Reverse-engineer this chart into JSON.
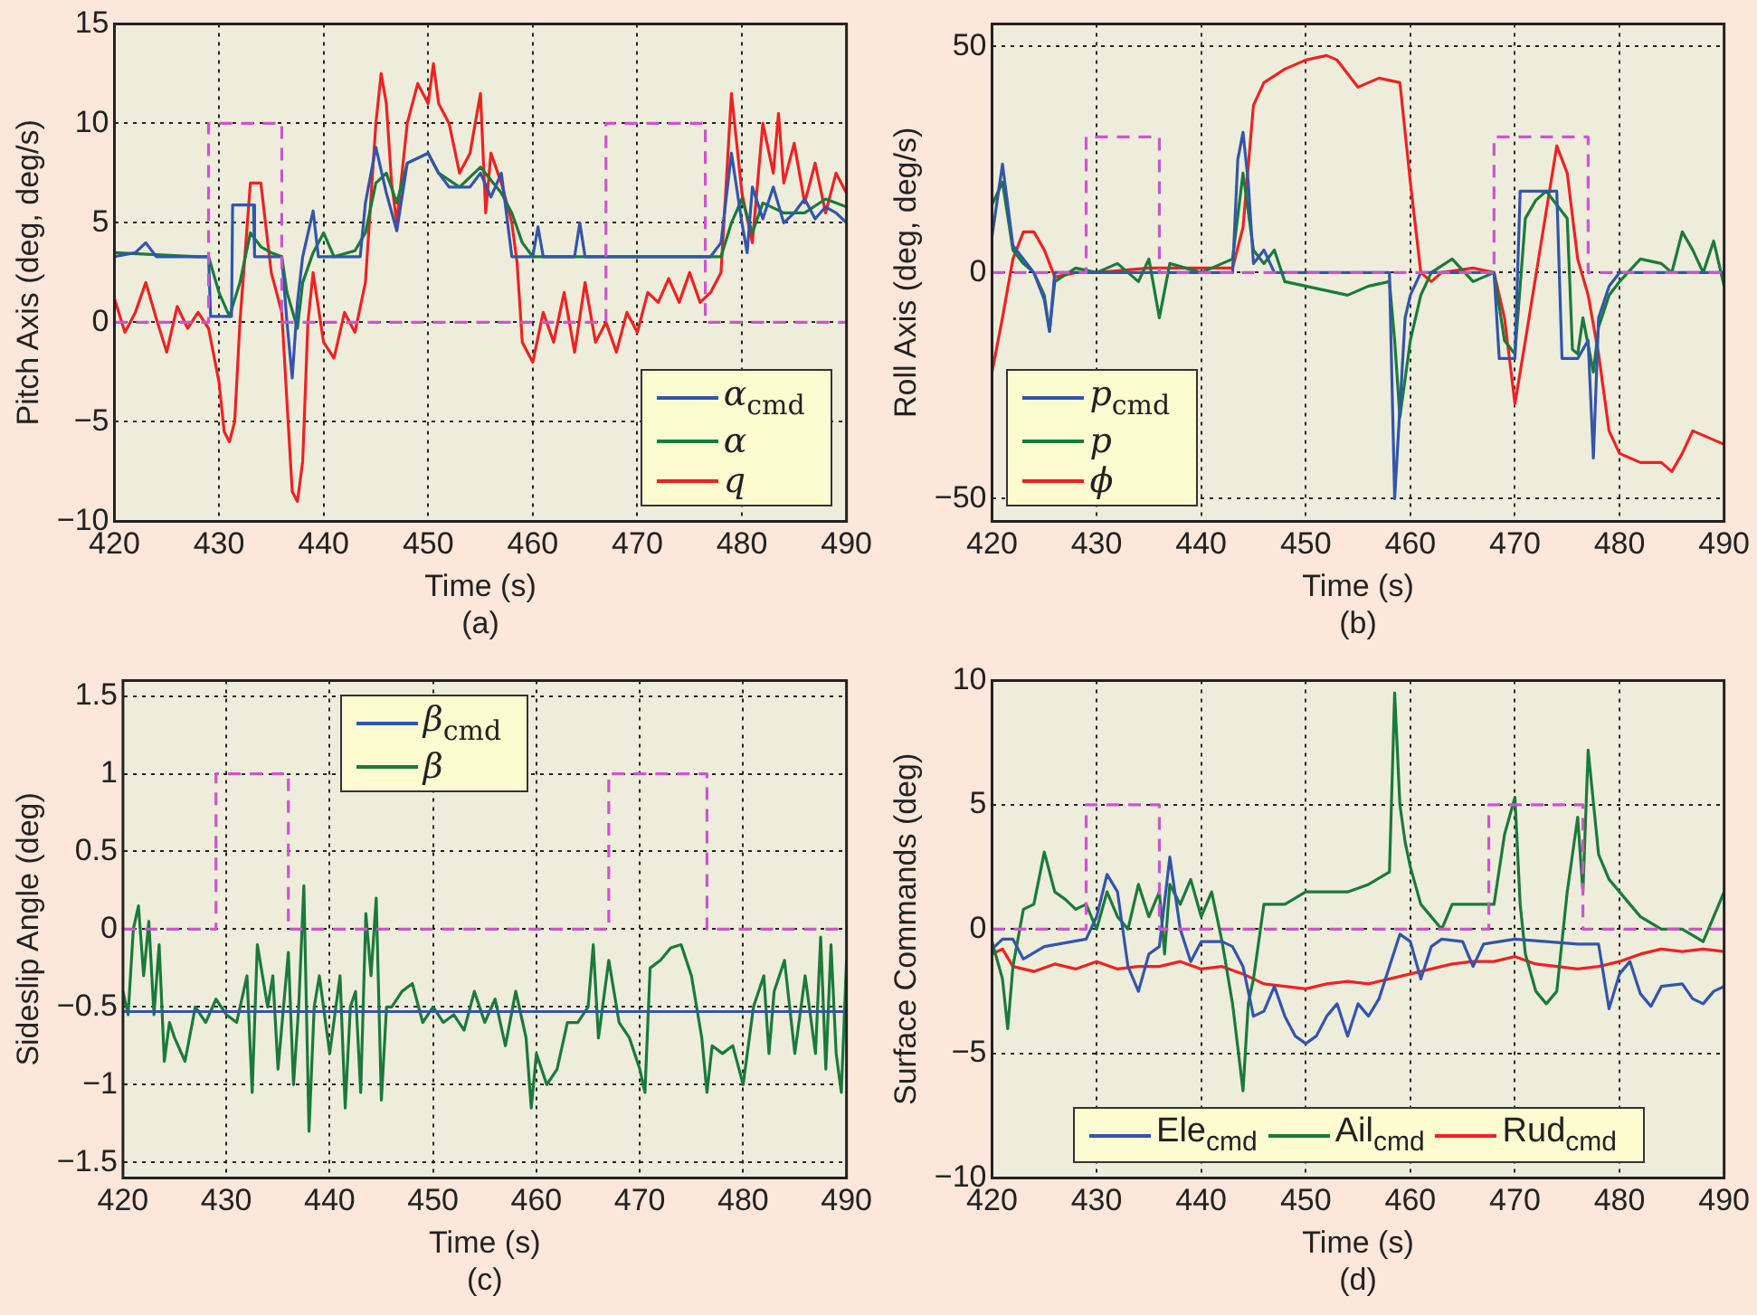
{
  "chart_data": [
    {
      "type": "line",
      "xlabel": "Time (s)",
      "ylabel": "Pitch Axis (deg, deg/s)",
      "annotations": [
        "(a)"
      ],
      "xlim": [
        420,
        490
      ],
      "xticks": [
        420,
        430,
        440,
        450,
        460,
        470,
        480,
        490
      ],
      "ylim": [
        -10,
        15
      ],
      "yticks": [
        -10,
        -5,
        0,
        5,
        10,
        15
      ],
      "grid": true,
      "legend": "bottom right",
      "marker": "none",
      "series": [
        {
          "color": "#cc55cc",
          "line_style": "dashed",
          "x": [
            420,
            429,
            429,
            436,
            436,
            467,
            467,
            476.5,
            476.5,
            490
          ],
          "values": [
            0,
            0,
            10,
            10,
            0,
            0,
            10,
            10,
            0,
            0
          ]
        },
        {
          "name": "α$_{cmd}$",
          "color": "#3355aa",
          "x": [
            420,
            422,
            423,
            424,
            429,
            429.2,
            431.2,
            431.3,
            433.3,
            433.4,
            436,
            436.5,
            437,
            437.5,
            438,
            439,
            439.5,
            443.5,
            444,
            445,
            446,
            447,
            448,
            450,
            451,
            452,
            454,
            455,
            456,
            457,
            458,
            460,
            460.5,
            461,
            464,
            464.5,
            465,
            469,
            477,
            478,
            479,
            480,
            480.5,
            481,
            482,
            483,
            484,
            485,
            486,
            487,
            488,
            489,
            490
          ],
          "values": [
            3.3,
            3.5,
            4.0,
            3.3,
            3.3,
            0.3,
            0.3,
            5.9,
            5.9,
            3.3,
            3.3,
            0,
            -2.8,
            1,
            3.3,
            5.6,
            3.3,
            3.3,
            6,
            8.8,
            6.5,
            4.6,
            8,
            8.5,
            7.5,
            6.8,
            6.8,
            7.5,
            6.3,
            7.5,
            3.3,
            3.3,
            4.8,
            3.3,
            3.3,
            5,
            3.3,
            3.3,
            3.3,
            4,
            8.5,
            5,
            3.5,
            6.8,
            5.2,
            6.8,
            5,
            5.5,
            6.2,
            5.2,
            5.8,
            5.5,
            5
          ]
        },
        {
          "name": "α",
          "color": "#1a7a3a",
          "x": [
            420,
            428,
            429,
            430,
            431,
            432,
            433,
            434,
            435,
            436,
            436.5,
            437.5,
            438,
            439,
            440,
            441,
            443,
            444,
            445,
            446,
            447,
            448,
            450,
            451,
            453,
            455,
            457,
            458,
            459,
            460,
            465,
            470,
            478,
            479,
            480,
            481,
            482,
            484,
            486,
            488,
            490
          ],
          "values": [
            3.5,
            3.3,
            3.3,
            1.5,
            0.3,
            2,
            4.5,
            3.8,
            3.5,
            3.3,
            1.5,
            -0.3,
            2,
            3.5,
            4.5,
            3.3,
            3.6,
            4.5,
            7,
            7.5,
            6,
            8,
            8.5,
            7.5,
            6.8,
            7.8,
            6.5,
            5.5,
            4,
            3.3,
            3.3,
            3.3,
            3.3,
            5,
            6.2,
            4.5,
            6,
            5.5,
            5.5,
            6.2,
            5.8
          ]
        },
        {
          "name": "q",
          "color": "#ee2222",
          "x": [
            420,
            421,
            422,
            423,
            424,
            425,
            426,
            427,
            428,
            429,
            430,
            430.5,
            431,
            431.5,
            432,
            433,
            434,
            435,
            436,
            437,
            437.5,
            438,
            438.5,
            439,
            440,
            441,
            442,
            443,
            444,
            445,
            445.5,
            446,
            446.5,
            447,
            448,
            449,
            450,
            450.5,
            451,
            452,
            453,
            454,
            455,
            455.5,
            456,
            457,
            458,
            458.5,
            459,
            460,
            461,
            462,
            463,
            464,
            465,
            466,
            467,
            468,
            469,
            470,
            471,
            472,
            473,
            474,
            475,
            476,
            477,
            478,
            478.5,
            479,
            480,
            481,
            482,
            483,
            483.5,
            484,
            485,
            486,
            487,
            488,
            489,
            490
          ],
          "values": [
            1.2,
            -0.5,
            0.5,
            2,
            0.2,
            -1.5,
            0.8,
            -0.3,
            0.5,
            -0.3,
            -3,
            -5.5,
            -6,
            -5,
            0,
            7,
            7,
            2.5,
            0.5,
            -8.5,
            -9,
            -7,
            0,
            2.5,
            -1,
            -1.8,
            0.5,
            -0.5,
            2,
            10,
            12.5,
            11,
            7,
            5,
            10,
            12,
            11,
            13,
            11,
            10,
            7.5,
            8.5,
            11.5,
            5.5,
            8.5,
            7,
            5,
            3,
            -1,
            -2,
            0.5,
            -1,
            1.5,
            -1.5,
            2,
            -1,
            0,
            -1.5,
            0.5,
            -0.5,
            1.5,
            1,
            2.2,
            1,
            2.5,
            1,
            1.5,
            2.5,
            7,
            11.5,
            6.5,
            4,
            10,
            7.5,
            10.5,
            7,
            9,
            6,
            8,
            5.5,
            7.5,
            6.5
          ]
        }
      ]
    },
    {
      "type": "line",
      "xlabel": "Time (s)",
      "ylabel": "Roll Axis (deg, deg/s)",
      "annotations": [
        "(b)"
      ],
      "xlim": [
        420,
        490
      ],
      "xticks": [
        420,
        430,
        440,
        450,
        460,
        470,
        480,
        490
      ],
      "ylim": [
        -55,
        55
      ],
      "yticks": [
        -50,
        0,
        50
      ],
      "grid": true,
      "legend": "bottom left",
      "marker": "none",
      "series": [
        {
          "color": "#cc55cc",
          "line_style": "dashed",
          "x": [
            420,
            429,
            429,
            436,
            436,
            468,
            468,
            477,
            477,
            490
          ],
          "values": [
            0,
            0,
            30,
            30,
            0,
            0,
            30,
            30,
            0,
            0
          ]
        },
        {
          "name": "p$_{cmd}$",
          "color": "#3355aa",
          "x": [
            420,
            421,
            422,
            424,
            425,
            425.5,
            426,
            443,
            443.5,
            444,
            444.5,
            445,
            446,
            447,
            458,
            458.5,
            459,
            459.5,
            460,
            461,
            468,
            468.5,
            470,
            470.5,
            474,
            474.5,
            476,
            477,
            477.5,
            478,
            479,
            480,
            490
          ],
          "values": [
            8,
            24,
            6,
            0,
            -6,
            -13,
            0,
            0,
            25,
            31,
            20,
            2,
            5,
            0,
            0,
            -50,
            -30,
            -10,
            -5,
            0,
            0,
            -19,
            -19,
            18,
            18,
            -19,
            -19,
            -15,
            -41,
            -10,
            -3,
            0,
            0
          ]
        },
        {
          "name": "p",
          "color": "#1a7a3a",
          "x": [
            420,
            421,
            422,
            423,
            424,
            425,
            425.5,
            426,
            428,
            430,
            432,
            434,
            435,
            436,
            437,
            440,
            442,
            443,
            444,
            445,
            446,
            447,
            448,
            450,
            452,
            454,
            456,
            458,
            458.5,
            459,
            460,
            461,
            462,
            464,
            466,
            468,
            469,
            470,
            471,
            472,
            473,
            474,
            475,
            475.5,
            476,
            476.5,
            477.5,
            478,
            479,
            480,
            482,
            484,
            485,
            486,
            487,
            488,
            489,
            490
          ],
          "values": [
            15,
            20,
            5,
            2,
            0,
            -5,
            -13,
            -2,
            1,
            0,
            2,
            -2,
            3,
            -10,
            2,
            0,
            2,
            3,
            22,
            5,
            2,
            5,
            -2,
            -3,
            -4,
            -5,
            -3,
            -2,
            -15,
            -32,
            -15,
            -5,
            0,
            3,
            -2,
            0,
            -15,
            -18,
            12,
            16,
            18,
            15,
            12,
            -17,
            -18,
            -10,
            -22,
            -12,
            -5,
            -2,
            3,
            2,
            0,
            9,
            5,
            0,
            7,
            -3
          ]
        },
        {
          "name": "ϕ",
          "color": "#ee2222",
          "x": [
            420,
            421,
            422,
            423,
            424,
            425,
            426,
            428,
            430,
            435,
            440,
            443,
            444,
            445,
            446,
            448,
            450,
            452,
            453,
            455,
            457,
            459,
            460,
            461,
            462,
            463,
            466,
            468,
            469,
            470,
            471,
            474,
            475,
            476,
            477,
            478,
            479,
            480,
            482,
            484,
            485,
            486,
            487,
            489,
            490
          ],
          "values": [
            -22,
            -10,
            3,
            9,
            9,
            5,
            -1,
            0,
            0,
            1,
            1,
            1,
            10,
            37,
            42,
            45,
            47,
            48,
            47,
            41,
            43,
            42,
            20,
            0,
            -2,
            0,
            1,
            0,
            -10,
            -29,
            -15,
            28,
            22,
            3,
            -5,
            -18,
            -35,
            -40,
            -42,
            -42,
            -44,
            -40,
            -35,
            -37,
            -38
          ]
        }
      ]
    },
    {
      "type": "line",
      "xlabel": "Time (s)",
      "ylabel": "Sideslip Angle (deg)",
      "annotations": [
        "(c)"
      ],
      "xlim": [
        420,
        490
      ],
      "xticks": [
        420,
        430,
        440,
        450,
        460,
        470,
        480,
        490
      ],
      "ylim": [
        -1.6,
        1.6
      ],
      "yticks": [
        -1.5,
        -1,
        -0.5,
        0,
        0.5,
        1,
        1.5
      ],
      "grid": true,
      "legend": "top",
      "marker": "none",
      "series": [
        {
          "color": "#cc55cc",
          "line_style": "dashed",
          "x": [
            420,
            429,
            429,
            436,
            436,
            467,
            467,
            476.5,
            476.5,
            490
          ],
          "values": [
            0,
            0,
            1,
            1,
            0,
            0,
            1,
            1,
            0,
            0
          ]
        },
        {
          "name": "β$_{cmd}$",
          "color": "#3355aa",
          "x": [
            420,
            490
          ],
          "values": [
            -0.53,
            -0.53
          ]
        },
        {
          "name": "β",
          "color": "#1a7a3a",
          "x": [
            420,
            420.5,
            421,
            421.5,
            422,
            422.5,
            423,
            423.5,
            424,
            424.5,
            425,
            426,
            427,
            428,
            429,
            430,
            431,
            432,
            432.5,
            433,
            434,
            434.5,
            435,
            436,
            436.5,
            437,
            437.5,
            438,
            438.5,
            439,
            440,
            441,
            441.5,
            442,
            442.5,
            443,
            443.5,
            444,
            444.5,
            445,
            445.5,
            446,
            447,
            448,
            449,
            450,
            451,
            452,
            453,
            454,
            455,
            456,
            457,
            458,
            459,
            459.5,
            460,
            461,
            462,
            463,
            464,
            465,
            465.5,
            466,
            467,
            468,
            469,
            470,
            470.5,
            471,
            472,
            473,
            474,
            475,
            476,
            476.5,
            477,
            478,
            479,
            480,
            481,
            482,
            482.5,
            483,
            484,
            485,
            486,
            487,
            487.5,
            488,
            488.5,
            489,
            489.5,
            490
          ],
          "values": [
            -0.4,
            -0.55,
            0,
            0.15,
            -0.3,
            0.05,
            -0.55,
            -0.1,
            -0.85,
            -0.6,
            -0.7,
            -0.85,
            -0.5,
            -0.6,
            -0.45,
            -0.55,
            -0.6,
            -0.3,
            -1.05,
            -0.1,
            -0.5,
            -0.3,
            -0.9,
            -0.15,
            -1.0,
            -0.5,
            0.28,
            -1.3,
            -0.5,
            -0.3,
            -0.8,
            -0.3,
            -1.15,
            -0.5,
            -0.4,
            -1.05,
            0.1,
            -0.3,
            0.2,
            -1.1,
            -0.5,
            -0.5,
            -0.4,
            -0.35,
            -0.6,
            -0.5,
            -0.6,
            -0.55,
            -0.65,
            -0.4,
            -0.6,
            -0.45,
            -0.75,
            -0.4,
            -0.7,
            -1.15,
            -0.8,
            -1.0,
            -0.9,
            -0.6,
            -0.6,
            -0.5,
            -0.1,
            -0.7,
            -0.2,
            -0.6,
            -0.7,
            -0.9,
            -1.05,
            -0.25,
            -0.2,
            -0.12,
            -0.1,
            -0.3,
            -0.7,
            -1.05,
            -0.75,
            -0.8,
            -0.75,
            -1.0,
            -0.5,
            -0.3,
            -0.8,
            -0.4,
            -0.2,
            -0.8,
            -0.3,
            -0.8,
            -0.05,
            -0.9,
            -0.1,
            -0.8,
            -1.05,
            -0.2
          ]
        }
      ]
    },
    {
      "type": "line",
      "xlabel": "Time (s)",
      "ylabel": "Surface Commands (deg)",
      "annotations": [
        "(d)"
      ],
      "xlim": [
        420,
        490
      ],
      "xticks": [
        420,
        430,
        440,
        450,
        460,
        470,
        480,
        490
      ],
      "ylim": [
        -10,
        10
      ],
      "yticks": [
        -10,
        -5,
        0,
        5,
        10
      ],
      "grid": true,
      "legend": "bottom",
      "marker": "none",
      "series": [
        {
          "color": "#cc55cc",
          "line_style": "dashed",
          "x": [
            420,
            429,
            429,
            436,
            436,
            467.5,
            467.5,
            476.5,
            476.5,
            490
          ],
          "values": [
            0,
            0,
            5,
            5,
            0,
            0,
            5,
            5,
            0,
            0
          ]
        },
        {
          "name": "Ele$_{cmd}$",
          "color": "#3355aa",
          "x": [
            420,
            421,
            422,
            423,
            425,
            429,
            430,
            431,
            432,
            433,
            434,
            435,
            436,
            437,
            438,
            439,
            440,
            442,
            443,
            444,
            445,
            446,
            447,
            448,
            449,
            450,
            451,
            452,
            453,
            454,
            455,
            456,
            457,
            458,
            459,
            460,
            461,
            462,
            463,
            465,
            466,
            467,
            470,
            473,
            476,
            478,
            479,
            480,
            481,
            482,
            483,
            484,
            486,
            487,
            488,
            489,
            490
          ],
          "values": [
            -0.8,
            -0.4,
            -0.4,
            -1.2,
            -0.7,
            -0.4,
            0.5,
            2.2,
            1.5,
            -1.5,
            -2.5,
            -1,
            -0.7,
            2.9,
            0,
            -1.3,
            -0.5,
            -0.5,
            -0.7,
            -1.5,
            -3.5,
            -3.3,
            -2.3,
            -3.5,
            -4.3,
            -4.6,
            -4.3,
            -3.5,
            -3,
            -4.3,
            -3,
            -3.5,
            -2.8,
            -1.5,
            -0.2,
            -0.5,
            -2,
            -0.7,
            -0.4,
            -0.5,
            -1.5,
            -0.6,
            -0.4,
            -0.5,
            -0.6,
            -0.6,
            -3.2,
            -1.8,
            -1.3,
            -2.6,
            -3.1,
            -2.3,
            -2.2,
            -2.8,
            -3,
            -2.5,
            -2.3
          ]
        },
        {
          "name": "Ail$_{cmd}$",
          "color": "#1a7a3a",
          "x": [
            420,
            421,
            421.5,
            422,
            423,
            424,
            425,
            426,
            427,
            428,
            429,
            430,
            431,
            432,
            433,
            434,
            435,
            436,
            436.5,
            437,
            438,
            439,
            440,
            441,
            442,
            443,
            444,
            444.5,
            445,
            446,
            448,
            450,
            452,
            454,
            456,
            458,
            458.5,
            459,
            459.5,
            460,
            461,
            462,
            463,
            464,
            466,
            468,
            469,
            470,
            470.5,
            471,
            472,
            473,
            474,
            475,
            476,
            476.5,
            477,
            478,
            479,
            480,
            482,
            484,
            486,
            488,
            489,
            490
          ],
          "values": [
            -0.5,
            -2,
            -4,
            -1.5,
            0.8,
            1,
            3.1,
            1.5,
            1.2,
            0.8,
            1,
            0,
            1.5,
            0.5,
            0,
            1.8,
            0.5,
            1.5,
            -1,
            1.8,
            1,
            2,
            0.5,
            1.5,
            -0.5,
            -3,
            -6.5,
            -3,
            -2,
            1,
            1,
            1.5,
            1.5,
            1.5,
            1.8,
            2.3,
            9.5,
            5,
            3.5,
            2.5,
            1,
            0.5,
            0,
            1,
            1,
            1,
            3.8,
            5.3,
            1,
            -1,
            -2.5,
            -3,
            -2.5,
            1.5,
            4.5,
            1.5,
            7.2,
            3,
            2,
            1.5,
            0.5,
            0,
            0,
            -0.5,
            0.5,
            1.5
          ]
        },
        {
          "name": "Rud$_{cmd}$",
          "color": "#ee2222",
          "x": [
            420,
            421,
            422,
            424,
            426,
            428,
            430,
            432,
            434,
            436,
            438,
            440,
            442,
            444,
            446,
            448,
            450,
            452,
            454,
            456,
            458,
            460,
            462,
            464,
            466,
            468,
            470,
            472,
            474,
            476,
            478,
            480,
            482,
            484,
            486,
            488,
            490
          ],
          "values": [
            -1,
            -0.8,
            -1.5,
            -1.7,
            -1.4,
            -1.6,
            -1.3,
            -1.6,
            -1.5,
            -1.5,
            -1.3,
            -1.6,
            -1.5,
            -1.8,
            -2.2,
            -2.3,
            -2.4,
            -2.2,
            -2.1,
            -2.2,
            -2,
            -1.8,
            -1.6,
            -1.4,
            -1.3,
            -1.3,
            -1.1,
            -1.4,
            -1.5,
            -1.6,
            -1.5,
            -1.3,
            -1,
            -0.8,
            -0.9,
            -0.8,
            -0.9
          ]
        }
      ]
    }
  ]
}
